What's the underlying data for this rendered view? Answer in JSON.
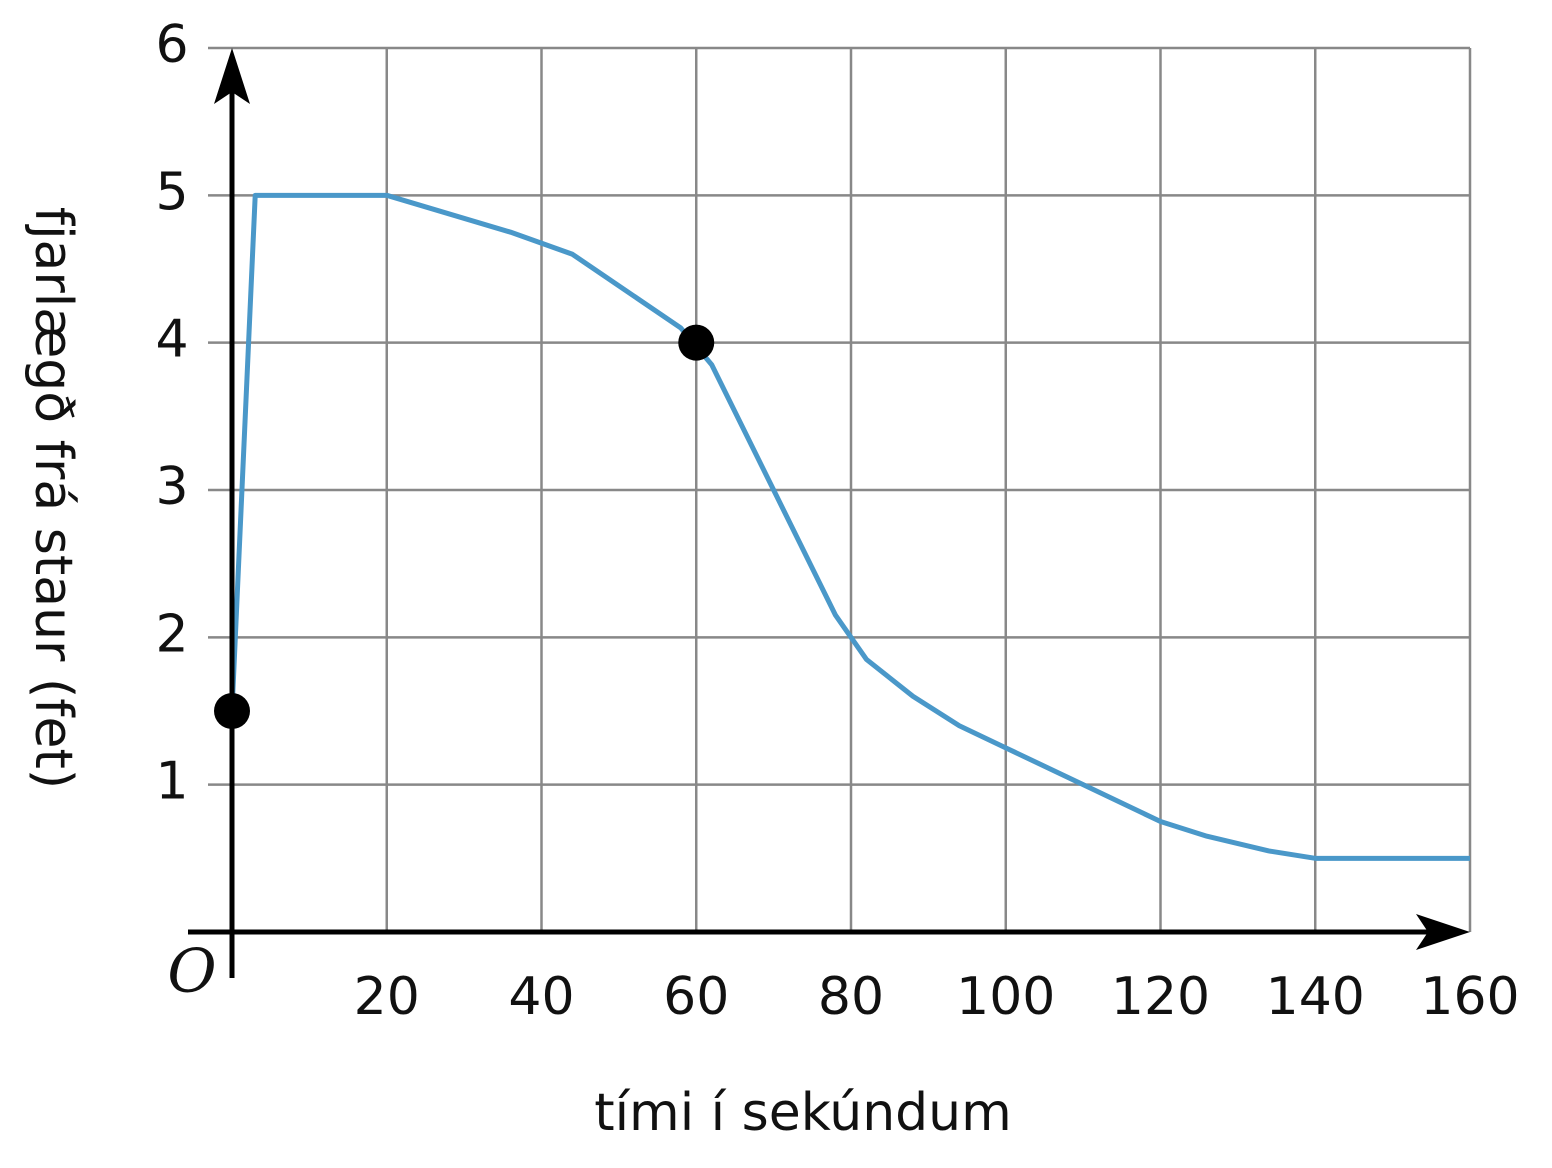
{
  "chart_data": {
    "type": "line",
    "x_label": "tími í sekúndum",
    "y_label": "fjarlægð frá staur (fet)",
    "origin_label": "O",
    "x": [
      0,
      3,
      20,
      36,
      44,
      58,
      62,
      70,
      78,
      82,
      88,
      94,
      100,
      110,
      120,
      126,
      134,
      140,
      160
    ],
    "values": [
      1.5,
      5,
      5,
      4.75,
      4.6,
      4.1,
      3.85,
      3.0,
      2.15,
      1.85,
      1.6,
      1.4,
      1.25,
      1.0,
      0.75,
      0.65,
      0.55,
      0.5,
      0.5
    ],
    "color": "#4a98c9",
    "points": {
      "x": [
        0,
        60
      ],
      "values": [
        1.5,
        4
      ],
      "color": "#000000"
    },
    "xlim": [
      0,
      160
    ],
    "ylim": [
      0,
      6
    ],
    "xticks": [
      20,
      40,
      60,
      80,
      100,
      120,
      140,
      160
    ],
    "yticks": [
      1,
      2,
      3,
      4,
      5,
      6
    ],
    "grid": true
  }
}
